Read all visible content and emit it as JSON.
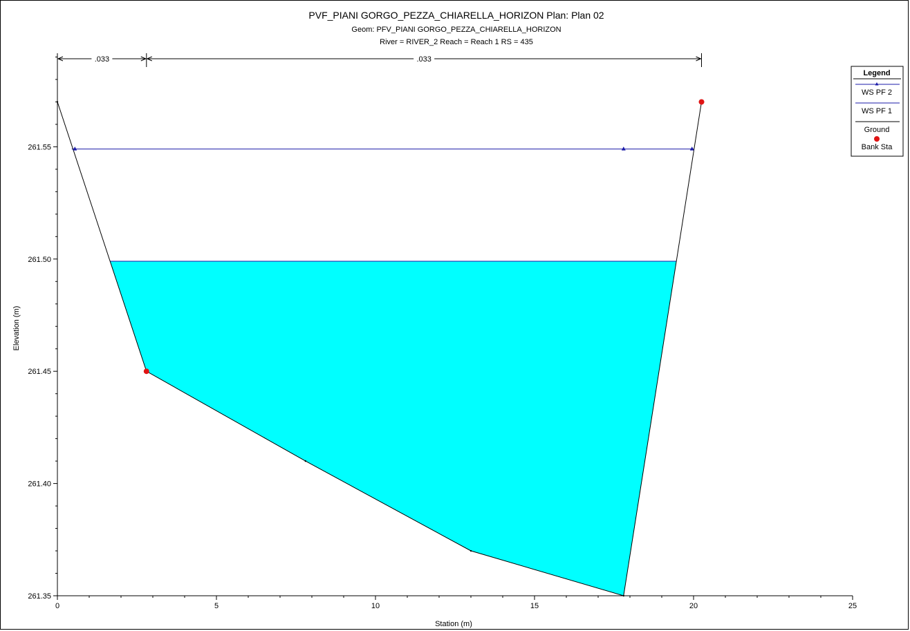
{
  "chart_data": {
    "type": "line",
    "title": "PVF_PIANI GORGO_PEZZA_CHIARELLA_HORIZON      Plan: Plan 02",
    "subtitle_geom": "Geom: PFV_PIANI GORGO_PEZZA_CHIARELLA_HORIZON",
    "subtitle_river": "River = RIVER_2   Reach = Reach 1      RS = 435",
    "xlabel": "Station (m)",
    "ylabel": "Elevation (m)",
    "xlim": [
      0,
      25
    ],
    "ylim": [
      261.35,
      261.6
    ],
    "x_ticks": [
      0,
      5,
      10,
      15,
      20,
      25
    ],
    "y_ticks": [
      "261.35",
      "261.40",
      "261.45",
      "261.50",
      "261.55"
    ],
    "y_tick_values": [
      261.35,
      261.4,
      261.45,
      261.5,
      261.55
    ],
    "grid": false,
    "legend_position": "top-right",
    "legend_title": "Legend",
    "series": [
      {
        "name": "WS PF 2",
        "color": "#1a1aa8",
        "points": [
          [
            0.55,
            261.549
          ],
          [
            17.8,
            261.549
          ],
          [
            19.95,
            261.549
          ]
        ],
        "x_range": [
          0.45,
          20.0
        ],
        "y": 261.549
      },
      {
        "name": "WS PF 1",
        "color": "#1a1aa8",
        "fill": "#00ffff",
        "y": 261.499
      },
      {
        "name": "Ground",
        "color": "#000000",
        "points": [
          [
            0,
            261.57
          ],
          [
            2.8,
            261.45
          ],
          [
            7.8,
            261.41
          ],
          [
            13.0,
            261.37
          ],
          [
            17.8,
            261.35
          ],
          [
            20.25,
            261.57
          ]
        ]
      },
      {
        "name": "Bank Sta",
        "color": "#e01414",
        "points": [
          [
            2.8,
            261.45
          ],
          [
            20.25,
            261.57
          ]
        ]
      }
    ],
    "mannings_n": [
      {
        "label": ".033",
        "from": 0,
        "to": 2.8
      },
      {
        "label": ".033",
        "from": 2.8,
        "to": 20.25
      }
    ]
  }
}
